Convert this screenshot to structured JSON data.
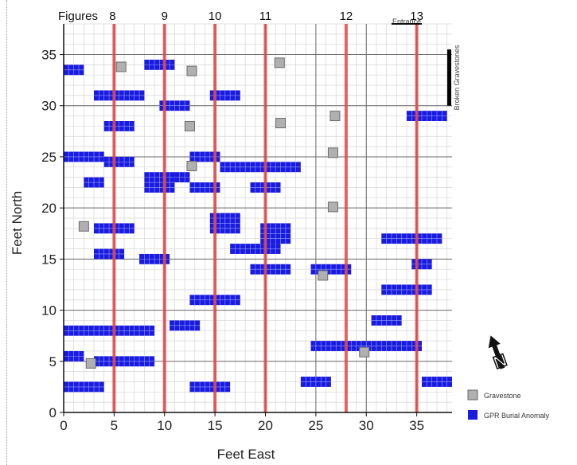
{
  "chart_data": {
    "type": "scatter",
    "xlabel": "Feet East",
    "ylabel": "Feet North",
    "xlim": [
      0,
      38.5
    ],
    "ylim": [
      0,
      38
    ],
    "x_ticks": [
      0,
      5,
      10,
      15,
      20,
      25,
      30,
      35
    ],
    "y_ticks": [
      0,
      5,
      10,
      15,
      20,
      25,
      30,
      35
    ],
    "grid": true,
    "minor_grid_step": 1,
    "figure_lines": [
      {
        "label": "8",
        "x": 5
      },
      {
        "label": "9",
        "x": 10
      },
      {
        "label": "10",
        "x": 15
      },
      {
        "label": "11",
        "x": 20
      },
      {
        "label": "12",
        "x": 28
      },
      {
        "label": "13",
        "x": 35
      }
    ],
    "figure_lines_prefix": "Figures",
    "figure_line_color": "#e34a4a",
    "entrance_label": "Entrance",
    "entrance_x": [
      32.5,
      35.5
    ],
    "broken_gravestones_label": "Broken Gravestones",
    "broken_gravestones_y": [
      30,
      35.5
    ],
    "north_arrow_label": "N",
    "series": [
      {
        "name": "Gravestone",
        "color": "#b0b0b0",
        "points": [
          [
            5.7,
            33.8
          ],
          [
            12.7,
            33.4
          ],
          [
            21.4,
            34.2
          ],
          [
            12.5,
            28
          ],
          [
            21.5,
            28.3
          ],
          [
            26.9,
            29
          ],
          [
            12.7,
            24.1
          ],
          [
            26.7,
            25.4
          ],
          [
            2,
            18.2
          ],
          [
            26.7,
            20.1
          ],
          [
            25.7,
            13.4
          ],
          [
            2.7,
            4.8
          ],
          [
            29.8,
            5.9
          ]
        ]
      },
      {
        "name": "GPR Burial Anomaly",
        "color": "#1a1ae0",
        "rects": [
          [
            0,
            33,
            2,
            34
          ],
          [
            8,
            33.5,
            11,
            34.5
          ],
          [
            3,
            30.5,
            8,
            31.5
          ],
          [
            14.5,
            30.5,
            17.5,
            31.5
          ],
          [
            9.5,
            29.5,
            12.5,
            30.5
          ],
          [
            34,
            28.5,
            38,
            29.5
          ],
          [
            4,
            27.5,
            7,
            28.5
          ],
          [
            0,
            24.5,
            4,
            25.5
          ],
          [
            4,
            24,
            7,
            25
          ],
          [
            12.5,
            24.5,
            15.5,
            25.5
          ],
          [
            15.5,
            23.5,
            23.5,
            24.5
          ],
          [
            2,
            22,
            4,
            23
          ],
          [
            8,
            21.5,
            11,
            23.5
          ],
          [
            11,
            22.5,
            12.5,
            23.5
          ],
          [
            12.5,
            21.5,
            15.5,
            22.5
          ],
          [
            18.5,
            21.5,
            21.5,
            22.5
          ],
          [
            14.5,
            17.5,
            17.5,
            19.5
          ],
          [
            3,
            17.5,
            7,
            18.5
          ],
          [
            19.5,
            16.5,
            22.5,
            18.5
          ],
          [
            16.5,
            15.5,
            21.5,
            16.5
          ],
          [
            3,
            15,
            6,
            16
          ],
          [
            7.5,
            14.5,
            10.5,
            15.5
          ],
          [
            31.5,
            16.5,
            37.5,
            17.5
          ],
          [
            34.5,
            14,
            36.5,
            15
          ],
          [
            18.5,
            13.5,
            22.5,
            14.5
          ],
          [
            24.5,
            13.5,
            28.5,
            14.5
          ],
          [
            31.5,
            11.5,
            36.5,
            12.5
          ],
          [
            12.5,
            10.5,
            17.5,
            11.5
          ],
          [
            30.5,
            8.5,
            33.5,
            9.5
          ],
          [
            10.5,
            8,
            13.5,
            9
          ],
          [
            0,
            7.5,
            9,
            8.5
          ],
          [
            24.5,
            6,
            35.5,
            7
          ],
          [
            0,
            5,
            2,
            6
          ],
          [
            3,
            4.5,
            9,
            5.5
          ],
          [
            23.5,
            2.5,
            26.5,
            3.5
          ],
          [
            35.5,
            2.5,
            38.5,
            3.5
          ],
          [
            0,
            2,
            4,
            3
          ],
          [
            12.5,
            2,
            16.5,
            3
          ]
        ]
      }
    ]
  }
}
